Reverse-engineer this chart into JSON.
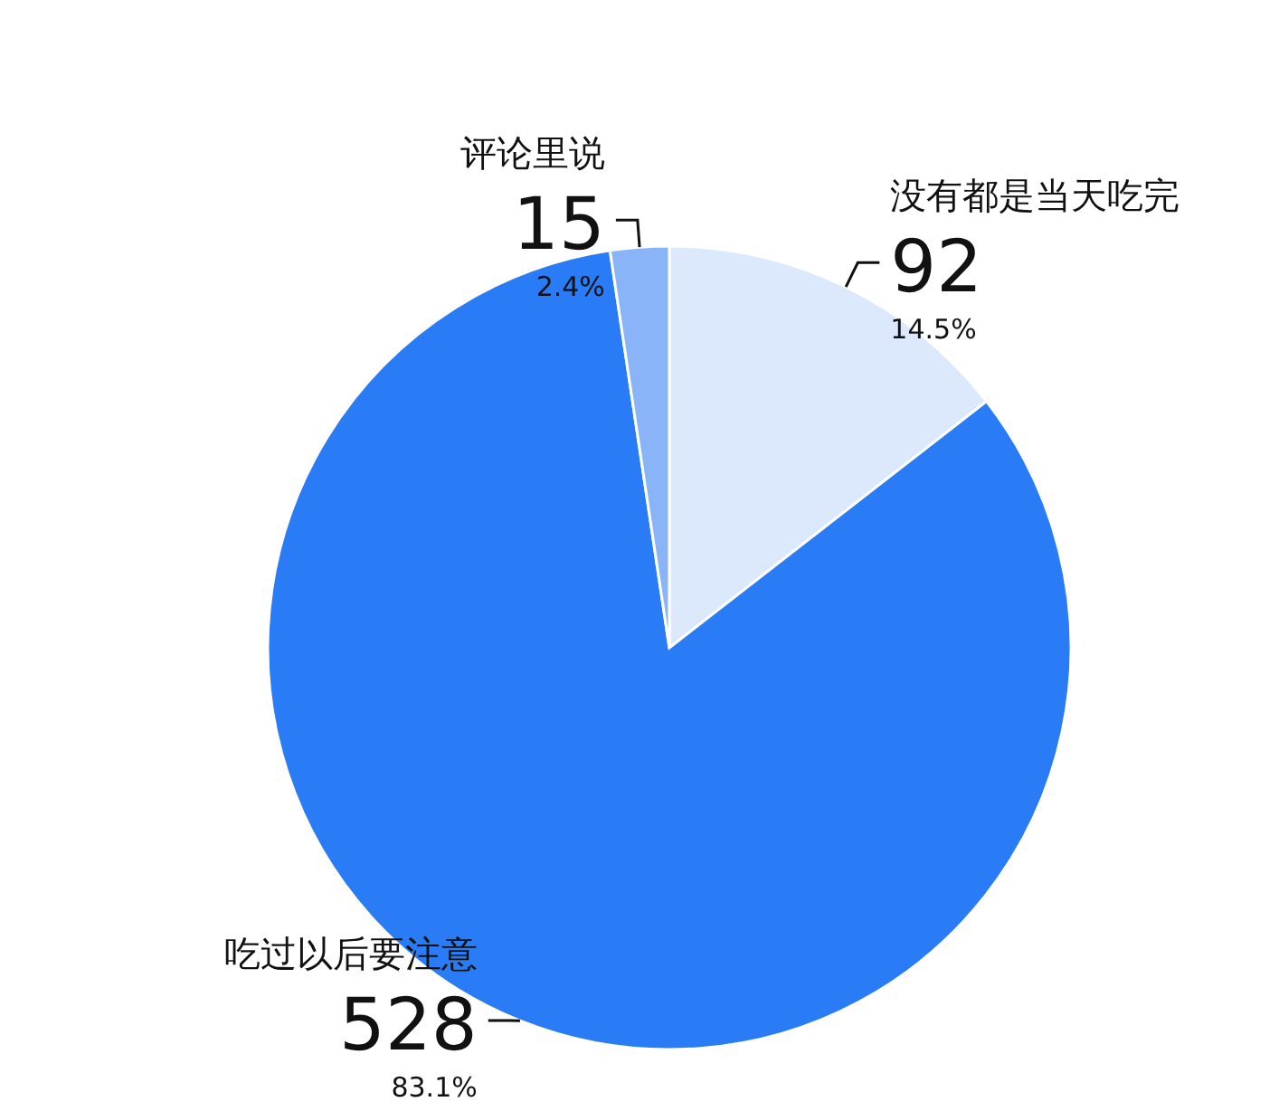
{
  "chart_data": {
    "type": "pie",
    "categories": [
      "没有都是当天吃完",
      "吃过以后要注意",
      "评论里说"
    ],
    "values": [
      92,
      528,
      15
    ],
    "colors": [
      "#dce8fb",
      "#2a7cf6",
      "#8ab4f8"
    ],
    "value_labels": [
      "92",
      "528",
      "15"
    ],
    "annotations": [
      "14.5%",
      "83.1%",
      "2.4%"
    ]
  }
}
